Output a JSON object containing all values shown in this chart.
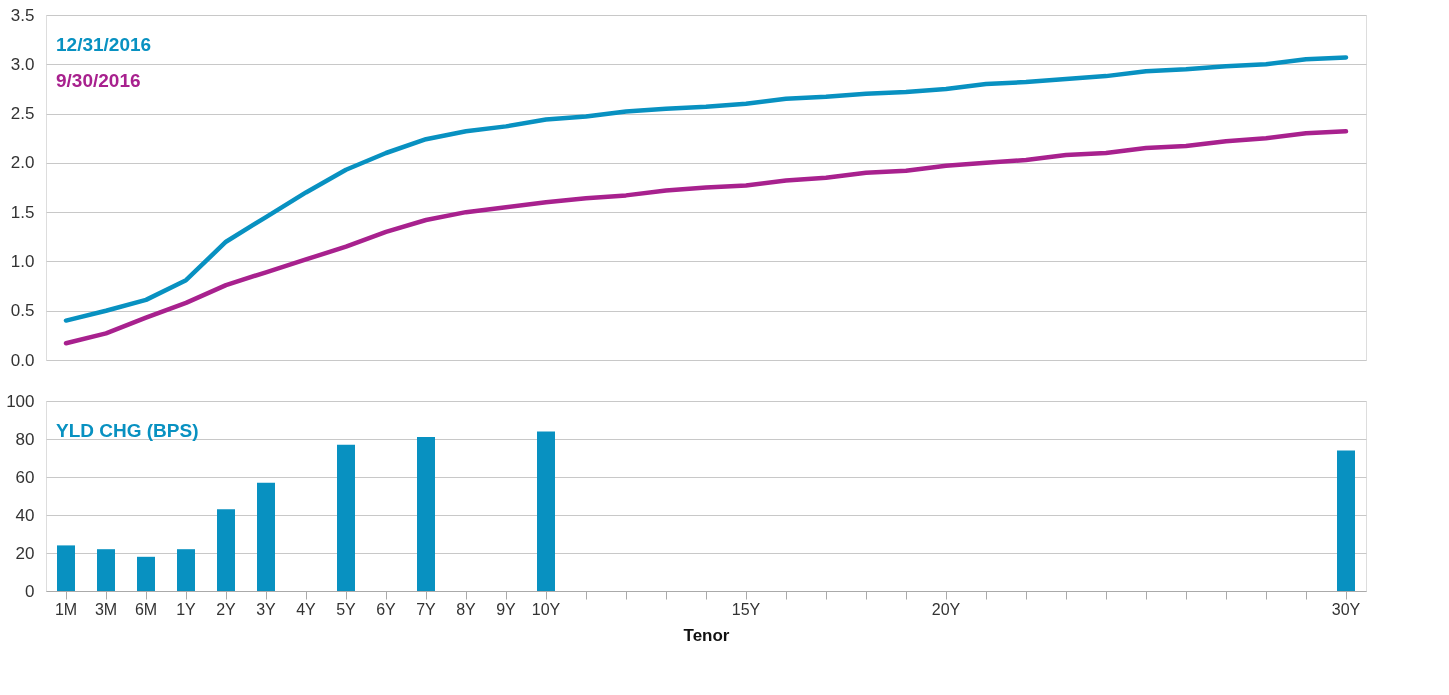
{
  "chart_data": [
    {
      "type": "line",
      "categories": [
        null,
        null,
        null,
        null,
        null,
        null,
        null,
        null,
        null,
        null,
        null,
        null,
        null,
        null,
        null,
        null,
        null,
        null,
        null,
        null,
        null,
        null,
        null,
        null,
        null,
        null,
        null,
        null,
        null,
        null,
        null,
        null,
        null
      ],
      "series": [
        {
          "name": "12/31/2016",
          "color": "#0891c1",
          "values": [
            0.4,
            0.5,
            0.61,
            0.81,
            1.2,
            1.45,
            1.7,
            1.93,
            2.1,
            2.24,
            2.32,
            2.37,
            2.44,
            2.47,
            2.52,
            2.55,
            2.57,
            2.6,
            2.65,
            2.67,
            2.7,
            2.72,
            2.75,
            2.8,
            2.82,
            2.85,
            2.88,
            2.93,
            2.95,
            2.98,
            3.0,
            3.05,
            3.07
          ]
        },
        {
          "name": "9/30/2016",
          "color": "#a8218e",
          "values": [
            0.17,
            0.27,
            0.43,
            0.58,
            0.76,
            0.89,
            1.02,
            1.15,
            1.3,
            1.42,
            1.5,
            1.55,
            1.6,
            1.64,
            1.67,
            1.72,
            1.75,
            1.77,
            1.82,
            1.85,
            1.9,
            1.92,
            1.97,
            2.0,
            2.03,
            2.08,
            2.1,
            2.15,
            2.17,
            2.22,
            2.25,
            2.3,
            2.32
          ]
        }
      ],
      "ylim": [
        0,
        3.5
      ],
      "yticks": [
        {
          "value": 0,
          "label": "0.0"
        },
        {
          "value": 0.5,
          "label": "0.5"
        },
        {
          "value": 1,
          "label": "1.0"
        },
        {
          "value": 1.5,
          "label": "1.5"
        },
        {
          "value": 2,
          "label": "2.0"
        },
        {
          "value": 2.5,
          "label": "2.5"
        },
        {
          "value": 3,
          "label": "3.0"
        },
        {
          "value": 3.5,
          "label": "3.5"
        }
      ],
      "grid": "y",
      "legend": "top left",
      "tick_labels": "y",
      "line_style": "solid",
      "marker": "none"
    },
    {
      "type": "bar",
      "xlabel": "Tenor",
      "categories": [
        "1M",
        "3M",
        "6M",
        "1Y",
        "2Y",
        "3Y",
        "4Y",
        "5Y",
        "6Y",
        "7Y",
        "8Y",
        "9Y",
        "10Y",
        null,
        null,
        null,
        null,
        "15Y",
        null,
        null,
        null,
        null,
        "20Y",
        null,
        null,
        null,
        null,
        null,
        null,
        null,
        null,
        null,
        "30Y"
      ],
      "series": [
        {
          "name": "YLD CHG (BPS)",
          "color": "#0891c1",
          "values": [
            24,
            22,
            18,
            22,
            43,
            57,
            null,
            77,
            null,
            81,
            null,
            null,
            84,
            null,
            null,
            null,
            null,
            null,
            null,
            null,
            null,
            null,
            null,
            null,
            null,
            null,
            null,
            null,
            null,
            null,
            null,
            null,
            74
          ]
        }
      ],
      "ylim": [
        0,
        100
      ],
      "yticks": [
        0,
        20,
        40,
        60,
        80,
        100
      ],
      "grid": "y",
      "legend": "top left"
    }
  ]
}
